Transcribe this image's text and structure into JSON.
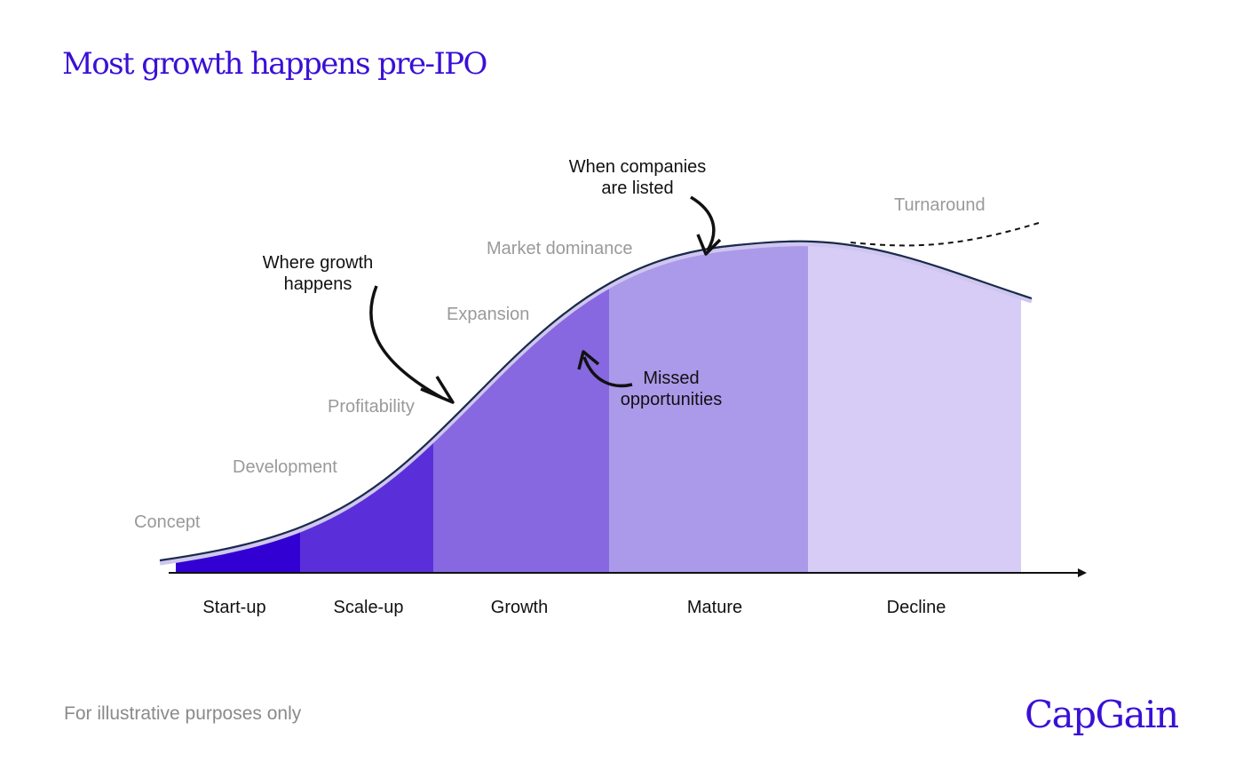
{
  "title": "Most growth happens pre-IPO",
  "footnote": "For illustrative purposes only",
  "brand": {
    "logo_text": "CapGain"
  },
  "colors": {
    "brand": "#3a10d6",
    "startup": "#3200d2",
    "scaleup": "#5a2fda",
    "growth": "#8768e0",
    "mature": "#ab99ea",
    "decline": "#d6ccf6",
    "curve": "#1a2a4a",
    "stage_text": "#9a9a9a"
  },
  "phases": [
    {
      "label": "Start-up"
    },
    {
      "label": "Scale-up"
    },
    {
      "label": "Growth"
    },
    {
      "label": "Mature"
    },
    {
      "label": "Decline"
    }
  ],
  "stages": [
    {
      "label": "Concept"
    },
    {
      "label": "Development"
    },
    {
      "label": "Profitability"
    },
    {
      "label": "Expansion"
    },
    {
      "label": "Market dominance"
    },
    {
      "label": "Turnaround"
    }
  ],
  "annotations": {
    "growth": [
      "Where growth",
      "happens"
    ],
    "listed": [
      "When companies",
      "are listed"
    ],
    "missed": [
      "Missed",
      "opportunities"
    ]
  }
}
